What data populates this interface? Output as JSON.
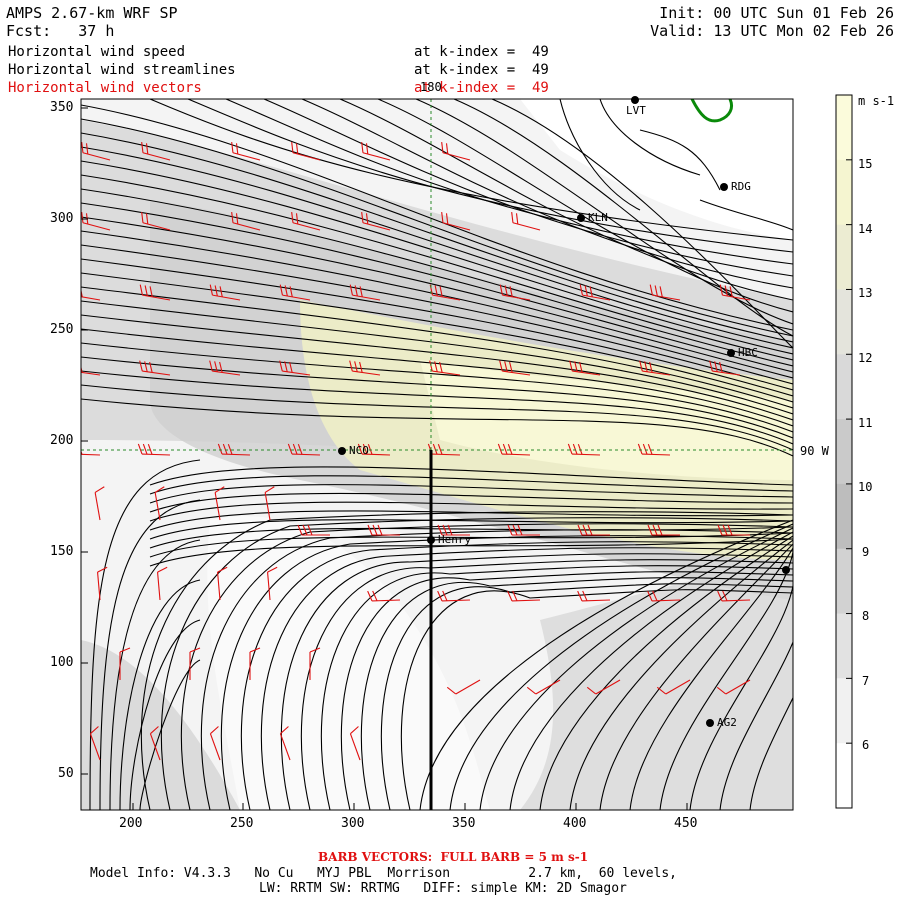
{
  "header": {
    "model_title": "AMPS 2.67-km WRF SP",
    "forecast": "Fcst:   37 h",
    "init": "Init: 00 UTC Sun 01 Feb 26",
    "valid": "Valid: 13 UTC Mon 02 Feb 26",
    "fields": [
      {
        "name": "Horizontal wind speed",
        "level": "at k-index =  49",
        "color": "#000000"
      },
      {
        "name": "Horizontal wind streamlines",
        "level": "at k-index =  49",
        "color": "#000000"
      },
      {
        "name": "Horizontal wind vectors",
        "level": "at k-index =  49",
        "color": "#e01010"
      }
    ]
  },
  "map": {
    "x_ticks": [
      "200",
      "250",
      "300",
      "350",
      "400",
      "450"
    ],
    "y_ticks": [
      "350",
      "300",
      "250",
      "200",
      "150",
      "100",
      "50"
    ],
    "meridian_label": "180",
    "parallel_label": "90 W",
    "stations": [
      {
        "name": "LVT"
      },
      {
        "name": "RDG"
      },
      {
        "name": "KLN"
      },
      {
        "name": "HBC"
      },
      {
        "name": "NCO"
      },
      {
        "name": "Henry"
      },
      {
        "name": "AG2"
      }
    ]
  },
  "colorbar": {
    "unit": "m s-1",
    "labels": [
      "15",
      "14",
      "13",
      "12",
      "11",
      "10",
      "9",
      "8",
      "7",
      "6"
    ],
    "colors": [
      "#fbfbdb",
      "#f5f5d0",
      "#ececd2",
      "#e4e4dc",
      "#d9d9d9",
      "#cacaca",
      "#bdbdbd",
      "#d2d2d2",
      "#e2e2e2",
      "#f1f1f1",
      "#ffffff"
    ]
  },
  "footer": {
    "barb_title": "BARB VECTORS:  FULL BARB = 5 m s-1",
    "model_info": "Model Info: V4.3.3   No Cu   MYJ PBL  Morrison          2.7 km,  60 levels,",
    "physics": "LW: RRTM SW: RRTMG   DIFF: simple KM: 2D Smagor"
  }
}
